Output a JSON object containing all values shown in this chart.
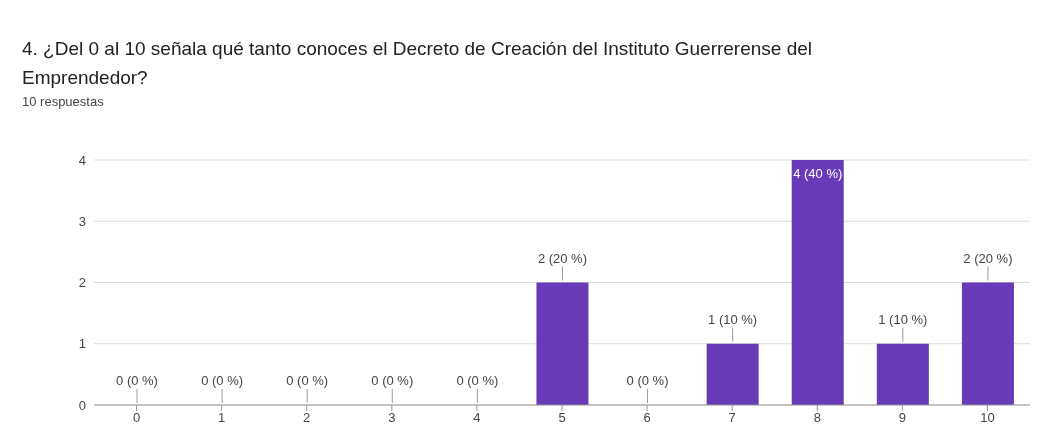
{
  "chart_data": {
    "type": "bar",
    "title": "4. ¿Del 0 al 10 señala qué tanto conoces el Decreto de Creación del Instituto Guerrerense del Emprendedor?",
    "subtitle": "10 respuestas",
    "categories": [
      "0",
      "1",
      "2",
      "3",
      "4",
      "5",
      "6",
      "7",
      "8",
      "9",
      "10"
    ],
    "values": [
      0,
      0,
      0,
      0,
      0,
      2,
      0,
      1,
      4,
      1,
      2
    ],
    "value_labels": [
      "0 (0 %)",
      "0 (0 %)",
      "0 (0 %)",
      "0 (0 %)",
      "0 (0 %)",
      "2 (20 %)",
      "0 (0 %)",
      "1 (10 %)",
      "4 (40 %)",
      "1 (10 %)",
      "2 (20 %)"
    ],
    "color": "#673ab7",
    "ylim": [
      0,
      4
    ],
    "yticks": [
      0,
      1,
      2,
      3,
      4
    ],
    "grid": "y",
    "legend": false
  }
}
